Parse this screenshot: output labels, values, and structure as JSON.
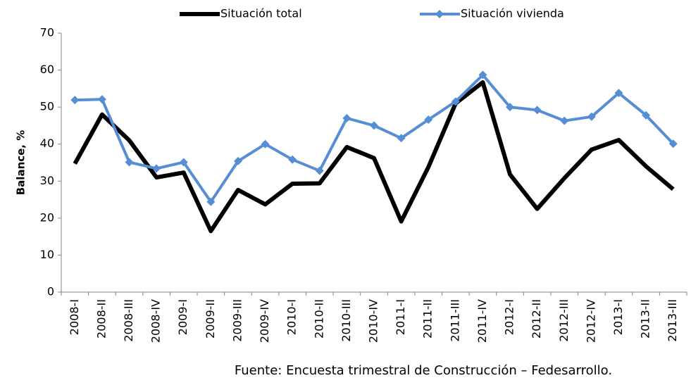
{
  "chart_data": {
    "type": "line",
    "y_label": "Balance, %",
    "source": "Fuente: Encuesta trimestral de Construcción – Fedesarrollo.",
    "categories": [
      "2008-I",
      "2008-II",
      "2008-III",
      "2008-IV",
      "2009-I",
      "2009-II",
      "2009-III",
      "2009-IV",
      "2010-I",
      "2010-II",
      "2010-III",
      "2010-IV",
      "2011-I",
      "2011-II",
      "2011-III",
      "2011-IV",
      "2012-I",
      "2012-II",
      "2012-III",
      "2012-IV",
      "2013-I",
      "2013-II",
      "2013-III"
    ],
    "series": [
      {
        "name": "Situación total",
        "color": "#000000",
        "marker": "none",
        "values": [
          34.7,
          48,
          41,
          31,
          32.3,
          16.5,
          27.6,
          23.7,
          29.3,
          29.4,
          39.2,
          36.2,
          19.1,
          33.8,
          51,
          56.7,
          31.8,
          22.5,
          30.8,
          38.5,
          41.1,
          34,
          27.8
        ]
      },
      {
        "name": "Situación vivienda",
        "color": "#558ed5",
        "marker": "diamond",
        "values": [
          51.9,
          52.1,
          35.1,
          33.4,
          35.1,
          24.4,
          35.4,
          40,
          35.8,
          32.8,
          47,
          45,
          41.6,
          46.6,
          51.5,
          58.7,
          50,
          49.2,
          46.3,
          47.4,
          53.8,
          47.8,
          40.1
        ]
      }
    ],
    "ylim": [
      0,
      70
    ],
    "yticks": [
      0,
      10,
      20,
      30,
      40,
      50,
      60,
      70
    ],
    "grid": false,
    "legend": "top"
  }
}
